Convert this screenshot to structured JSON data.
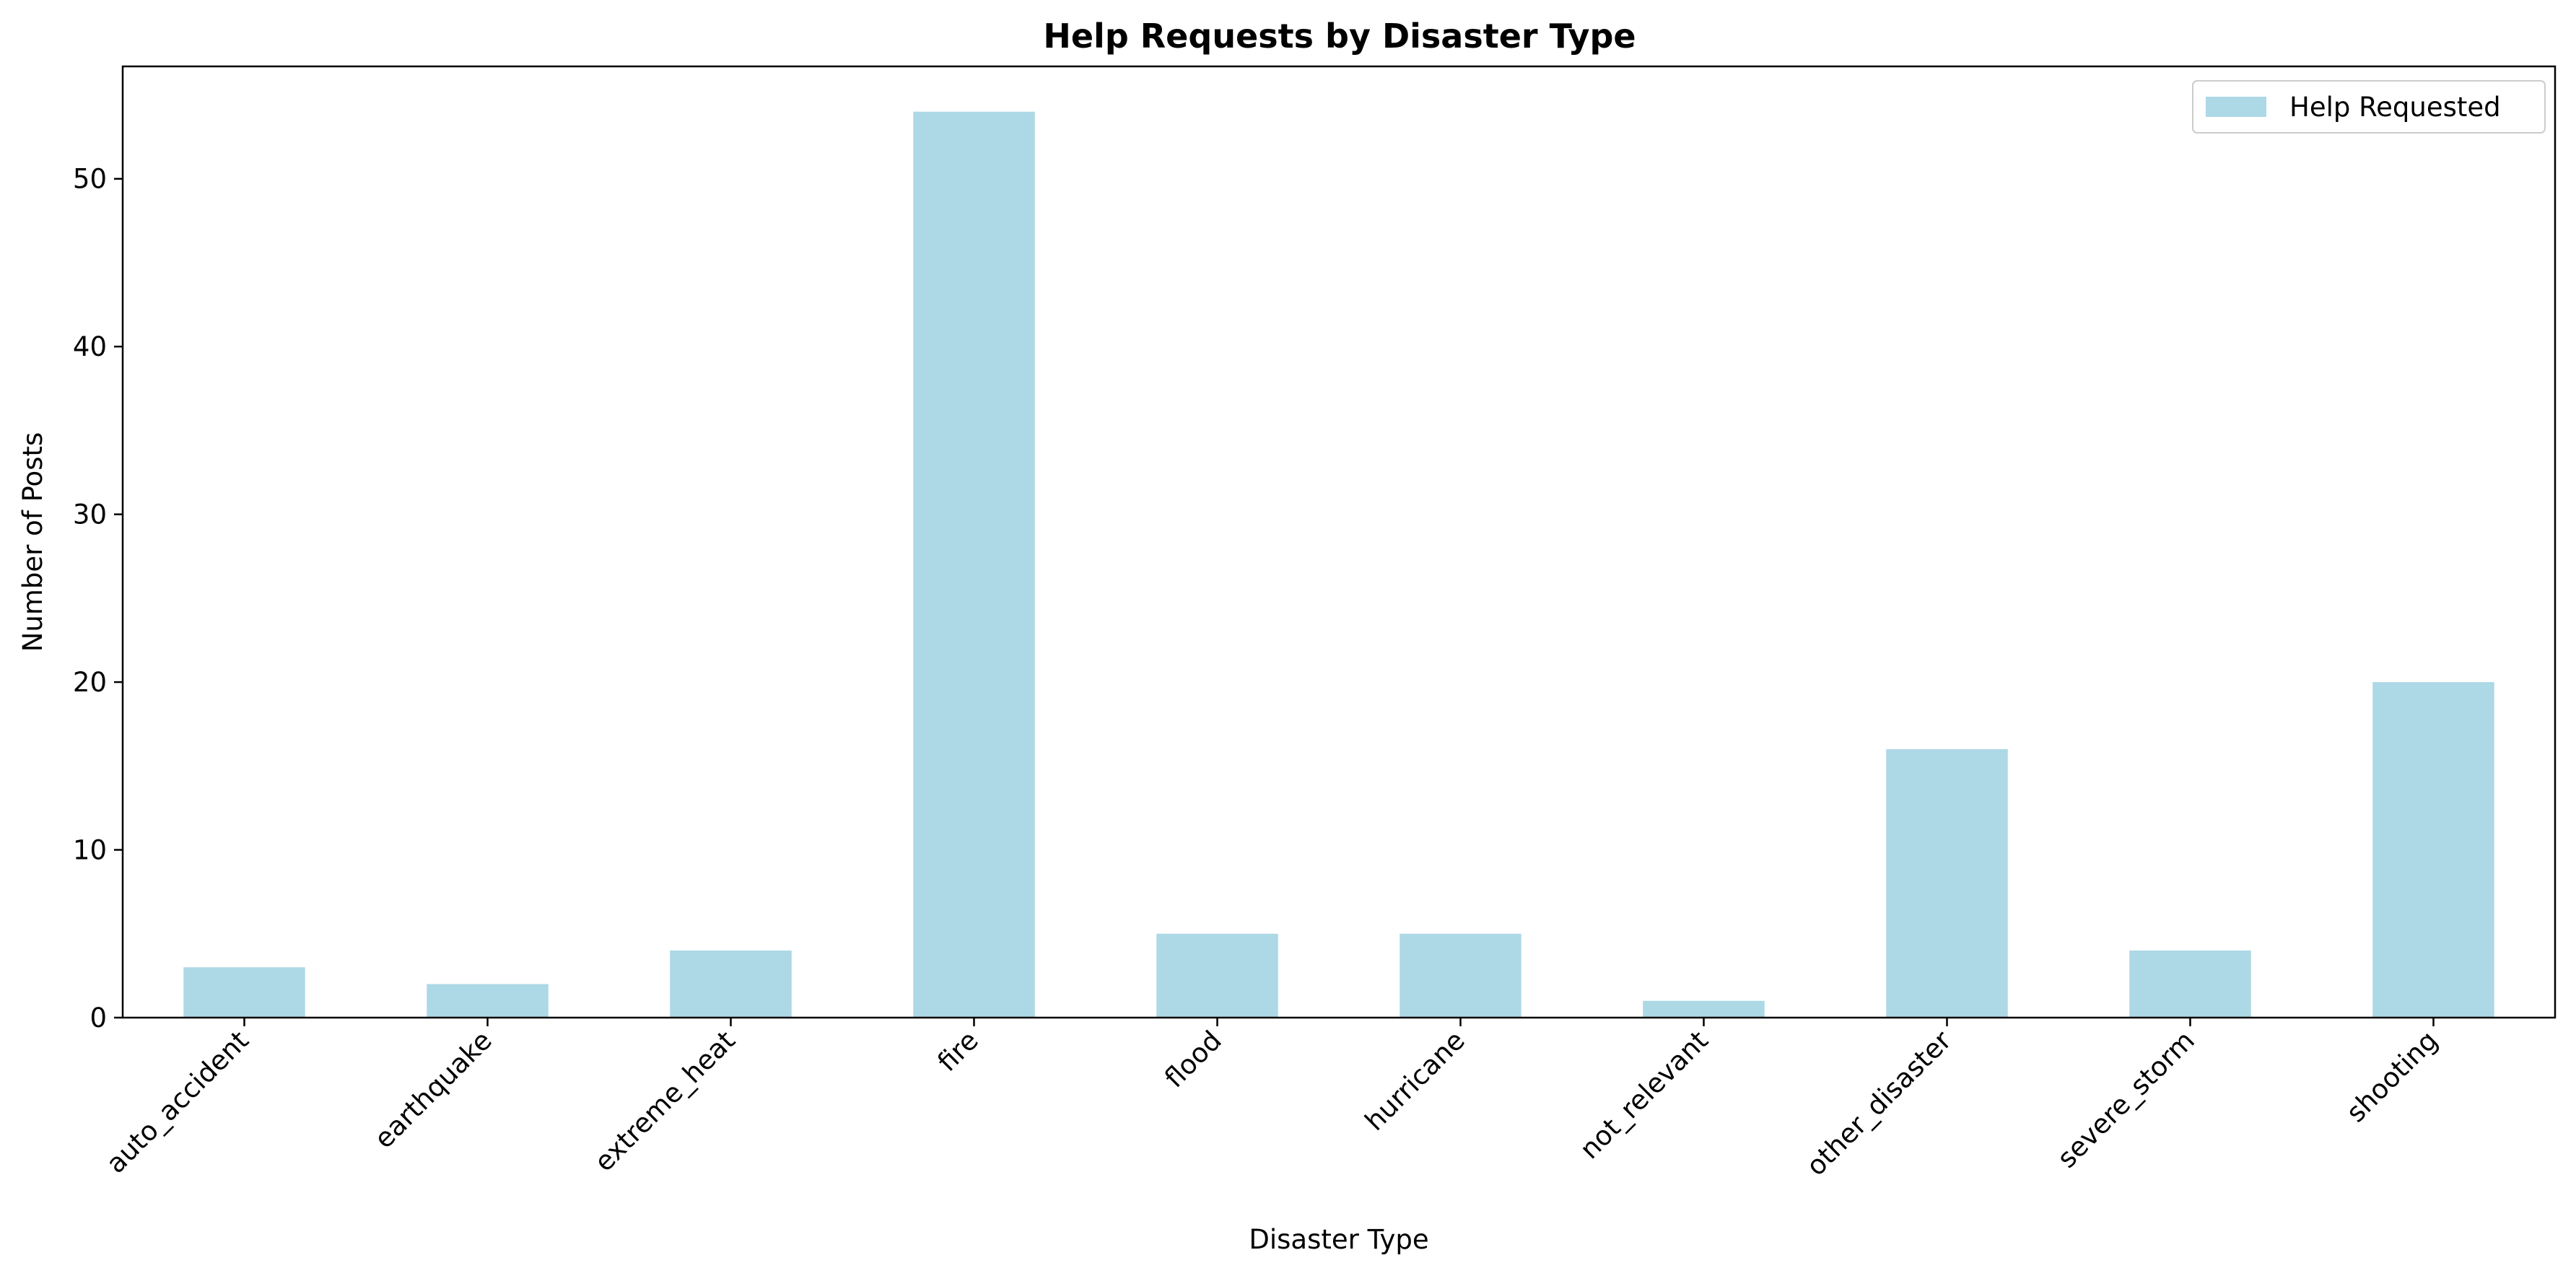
{
  "chart_data": {
    "type": "bar",
    "title": "Help Requests by Disaster Type",
    "xlabel": "Disaster Type",
    "ylabel": "Number of Posts",
    "categories": [
      "auto_accident",
      "earthquake",
      "extreme_heat",
      "fire",
      "flood",
      "hurricane",
      "not_relevant",
      "other_disaster",
      "severe_storm",
      "shooting"
    ],
    "series": [
      {
        "name": "Help Requested",
        "values": [
          3,
          2,
          4,
          54,
          5,
          5,
          1,
          16,
          4,
          20
        ],
        "color": "#add8e6"
      }
    ],
    "ylim": [
      0,
      56.7
    ],
    "yticks": [
      0,
      10,
      20,
      30,
      40,
      50
    ],
    "grid": false,
    "legend_position": "top-right"
  }
}
